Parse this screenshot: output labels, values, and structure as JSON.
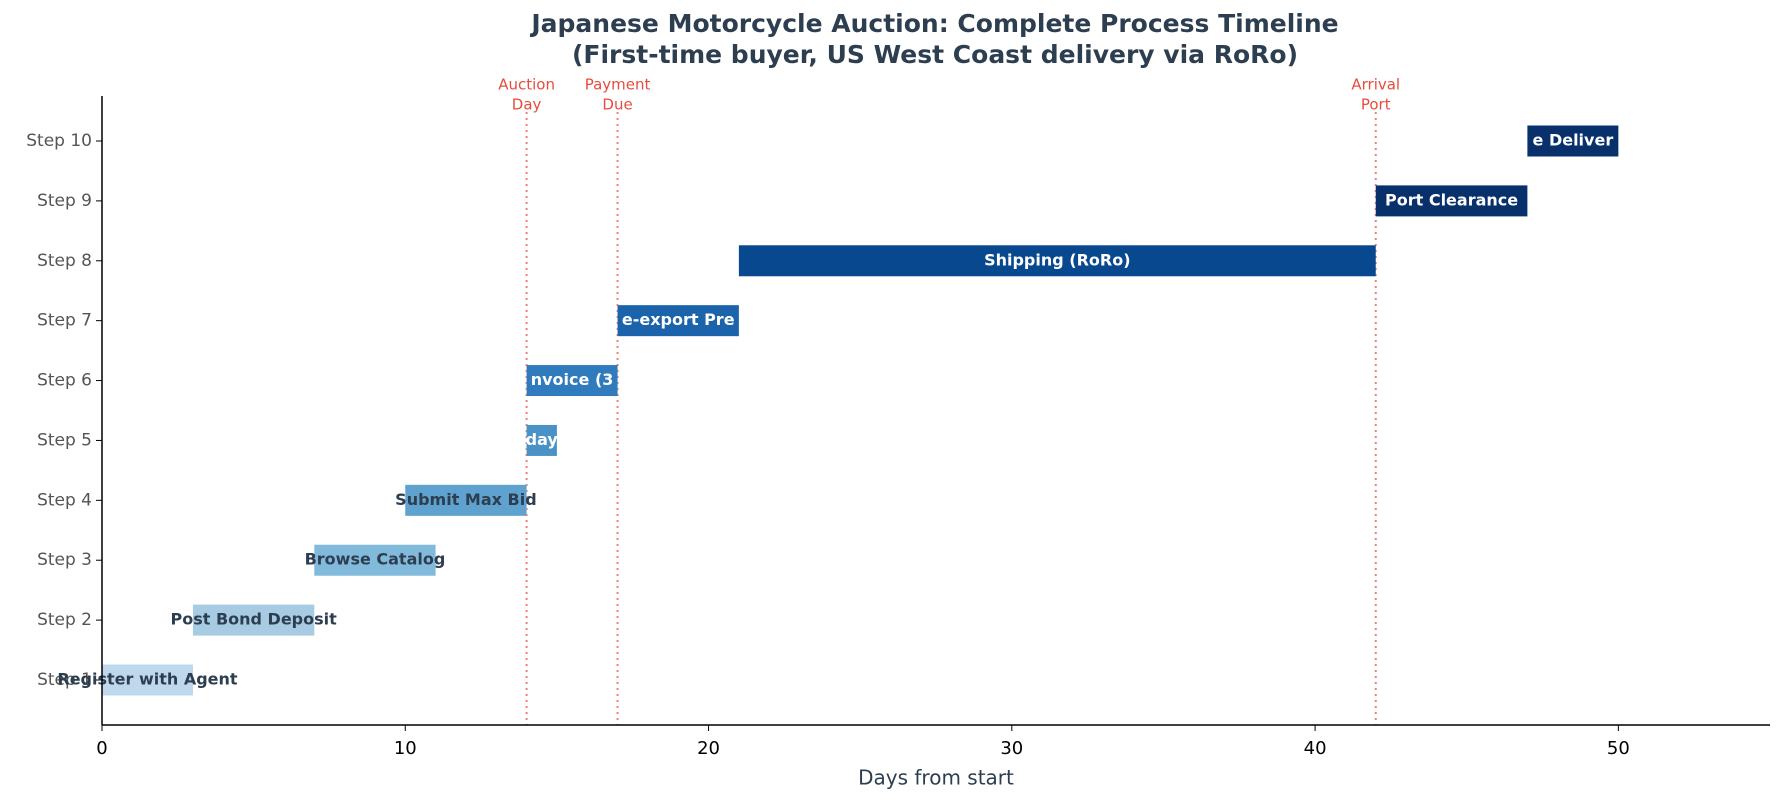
{
  "chart_data": {
    "type": "gantt",
    "title": [
      "Japanese Motorcycle Auction: Complete Process Timeline",
      "(First-time buyer, US West Coast delivery via RoRo)"
    ],
    "xlabel": "Days from start",
    "xlim": [
      0,
      55
    ],
    "xticks": [
      0,
      10,
      20,
      30,
      40,
      50
    ],
    "categories": [
      "Step 1",
      "Step 2",
      "Step 3",
      "Step 4",
      "Step 5",
      "Step 6",
      "Step 7",
      "Step 8",
      "Step 9",
      "Step 10"
    ],
    "tasks": [
      {
        "label": "Register with Agent",
        "start": 0,
        "end": 3,
        "color": "#c0d8ed",
        "label_color": "#2c3e50"
      },
      {
        "label": "Post Bond Deposit",
        "start": 3,
        "end": 7,
        "color": "#a6cbe3",
        "label_color": "#2c3e50"
      },
      {
        "label": "Browse Catalog",
        "start": 7,
        "end": 11,
        "color": "#82badb",
        "label_color": "#2c3e50"
      },
      {
        "label": "Submit Max Bid",
        "start": 10,
        "end": 14,
        "color": "#5fa2cf",
        "label_color": "#2c3e50"
      },
      {
        "label": "day",
        "start": 14,
        "end": 15,
        "color": "#4a92c6",
        "label_color": "#ffffff"
      },
      {
        "label": "nvoice (3",
        "start": 14,
        "end": 17,
        "color": "#2f7bbd",
        "label_color": "#ffffff"
      },
      {
        "label": "e-export Pre",
        "start": 17,
        "end": 21,
        "color": "#1b63ab",
        "label_color": "#ffffff"
      },
      {
        "label": "Shipping (RoRo)",
        "start": 21,
        "end": 42,
        "color": "#08488e",
        "label_color": "#ffffff"
      },
      {
        "label": "Port Clearance",
        "start": 42,
        "end": 47,
        "color": "#08306b",
        "label_color": "#ffffff"
      },
      {
        "label": "e Deliver",
        "start": 47,
        "end": 50,
        "color": "#08306b",
        "label_color": "#ffffff"
      }
    ],
    "markers": [
      {
        "x": 14,
        "label": [
          "Auction",
          "Day"
        ]
      },
      {
        "x": 17,
        "label": [
          "Payment",
          "Due"
        ]
      },
      {
        "x": 42,
        "label": [
          "Arrival",
          "Port"
        ]
      }
    ],
    "marker_color": "#e74c3c"
  }
}
